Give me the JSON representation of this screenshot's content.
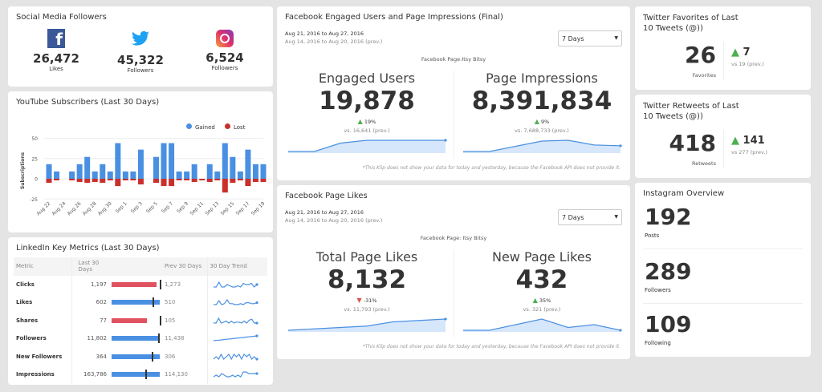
{
  "social": {
    "title": "Social Media Followers",
    "items": [
      {
        "icon": "facebook-icon",
        "value": "26,472",
        "label": "Likes",
        "color": "#3b5998"
      },
      {
        "icon": "twitter-icon",
        "value": "45,322",
        "label": "Followers",
        "color": "#1da1f2"
      },
      {
        "icon": "instagram-icon",
        "value": "6,524",
        "label": "Followers",
        "color": "#c13584"
      }
    ]
  },
  "youtube": {
    "title": "YouTube Subscribers (Last 30 Days)",
    "legend": [
      "Gained",
      "Lost"
    ],
    "ylabel": "Subscriptions"
  },
  "chart_data": {
    "type": "bar",
    "title": "YouTube Subscribers (Last 30 Days)",
    "ylabel": "Subscriptions",
    "ylim": [
      -25,
      50
    ],
    "yticks": [
      "50",
      "25",
      "0",
      "-25"
    ],
    "ytick_values": [
      50,
      25,
      0,
      -25
    ],
    "categories": [
      "Aug 22",
      "Aug 23",
      "Aug 24",
      "Aug 25",
      "Aug 26",
      "Aug 27",
      "Aug 28",
      "Aug 29",
      "Aug 30",
      "Aug 31",
      "Sep 1",
      "Sep 2",
      "Sep 3",
      "Sep 4",
      "Sep 5",
      "Sep 6",
      "Sep 7",
      "Sep 8",
      "Sep 9",
      "Sep 10",
      "Sep 11",
      "Sep 12",
      "Sep 13",
      "Sep 14",
      "Sep 15",
      "Sep 16",
      "Sep 17",
      "Sep 18",
      "Sep 19"
    ],
    "series": [
      {
        "name": "Gained",
        "color": "#4a90e2",
        "values": [
          18,
          9,
          0,
          9,
          18,
          27,
          9,
          18,
          9,
          44,
          9,
          9,
          36,
          0,
          27,
          44,
          44,
          9,
          9,
          18,
          0,
          18,
          9,
          44,
          27,
          9,
          36,
          18,
          18
        ]
      },
      {
        "name": "Lost",
        "color": "#c9302c",
        "values": [
          -5,
          -2,
          0,
          -2,
          -4,
          -5,
          -4,
          -5,
          -2,
          -9,
          -2,
          -2,
          -7,
          0,
          -5,
          -9,
          -9,
          -2,
          -2,
          -4,
          -2,
          -4,
          -2,
          -17,
          -5,
          -2,
          -9,
          -4,
          -4
        ]
      }
    ]
  },
  "linkedin": {
    "title": "LinkedIn Key Metrics (Last 30 Days)",
    "headers": [
      "Metric",
      "Last 30 Days",
      "Prev 30 Days",
      "30 Day Trend"
    ],
    "rows": [
      {
        "metric": "Clicks",
        "last": "1,197",
        "prev": "1,273",
        "ratio": 0.94,
        "down": true,
        "trend": [
          2,
          2,
          6,
          2,
          2,
          4,
          3,
          2,
          2,
          3,
          2,
          5,
          4,
          4,
          5,
          2,
          4
        ]
      },
      {
        "metric": "Likes",
        "last": "602",
        "prev": "510",
        "ratio": 1.18,
        "down": false,
        "trend": [
          2,
          2,
          6,
          2,
          3,
          7,
          3,
          3,
          2,
          2,
          3,
          2,
          4,
          4,
          3,
          3,
          4
        ]
      },
      {
        "metric": "Shares",
        "last": "77",
        "prev": "105",
        "ratio": 0.73,
        "down": true,
        "trend": [
          2,
          2,
          7,
          2,
          3,
          4,
          2,
          4,
          2,
          3,
          3,
          2,
          4,
          2,
          5,
          6,
          2,
          2
        ]
      },
      {
        "metric": "Followers",
        "last": "11,802",
        "prev": "11,438",
        "ratio": 1.03,
        "down": false,
        "trend": [
          1,
          1.3,
          1.6,
          2,
          2.3,
          2.6,
          3,
          3.3,
          3.6,
          4,
          4.3,
          4.6,
          5
        ]
      },
      {
        "metric": "New Followers",
        "last": "364",
        "prev": "306",
        "ratio": 1.19,
        "down": false,
        "trend": [
          2,
          3,
          2,
          4,
          2,
          3,
          4,
          2,
          4,
          3,
          4,
          2,
          4,
          3,
          4,
          2,
          3,
          2
        ]
      },
      {
        "metric": "Impressions",
        "last": "163,786",
        "prev": "114,130",
        "ratio": 1.43,
        "down": false,
        "trend": [
          2,
          3,
          2,
          4,
          3,
          2,
          2,
          3,
          2,
          3,
          2,
          5,
          5,
          4,
          4,
          4,
          4
        ]
      }
    ]
  },
  "fb_engaged": {
    "title": "Facebook Engaged Users and Page Impressions (Final)",
    "range": "Aug 21, 2016 to Aug 27, 2016",
    "prev_range": "Aug 14, 2016 to Aug 20, 2016 (prev.)",
    "select": "7 Days",
    "page": "Facebook Page:Itsy Bitsy",
    "metrics": [
      {
        "label": "Engaged Users",
        "value": "19,878",
        "change": "19%",
        "dir": "up",
        "vs": "vs. 16,641 (prev.)",
        "trend": [
          1,
          1,
          4,
          5,
          5,
          5,
          5
        ]
      },
      {
        "label": "Page Impressions",
        "value": "8,391,834",
        "change": "9%",
        "dir": "up",
        "vs": "vs. 7,688,733 (prev.)",
        "trend": [
          1,
          1,
          3,
          5,
          5.3,
          3.5,
          3.2
        ]
      }
    ],
    "note": "*This Klip does not show your data for today and yesterday, because the Facebook API does not provide it."
  },
  "fb_likes": {
    "title": "Facebook Page Likes",
    "range": "Aug 21, 2016 to Aug 27, 2016",
    "prev_range": "Aug 14, 2016 to Aug 20, 2016 (prev.)",
    "select": "7 Days",
    "page": "Facebook Page: Itsy Bitsy",
    "metrics": [
      {
        "label": "Total Page Likes",
        "value": "8,132",
        "change": "-31%",
        "dir": "down",
        "vs": "vs. 11,793 (prev.)",
        "trend": [
          1,
          1.5,
          2,
          2.5,
          4,
          4.5,
          5
        ]
      },
      {
        "label": "New Page Likes",
        "value": "432",
        "change": "35%",
        "dir": "up",
        "vs": "vs. 321 (prev.)",
        "trend": [
          1,
          1,
          3,
          5,
          2,
          3,
          1
        ]
      }
    ],
    "note": "*This Klip does not show your data for today and yesterday, because the Facebook API does not provide it."
  },
  "tw_fav": {
    "title": "Twitter Favorites of Last 10 Tweets (@))",
    "value": "26",
    "label": "Favorites",
    "delta": "7",
    "vs": "vs 19 (prev.)"
  },
  "tw_rt": {
    "title": "Twitter Retweets of Last 10 Tweets (@))",
    "value": "418",
    "label": "Retweets",
    "delta": "141",
    "vs": "vs 277 (prev.)"
  },
  "instagram": {
    "title": "Instagram Overview",
    "items": [
      {
        "value": "192",
        "label": "Posts"
      },
      {
        "value": "289",
        "label": "Followers"
      },
      {
        "value": "109",
        "label": "Following"
      }
    ]
  }
}
